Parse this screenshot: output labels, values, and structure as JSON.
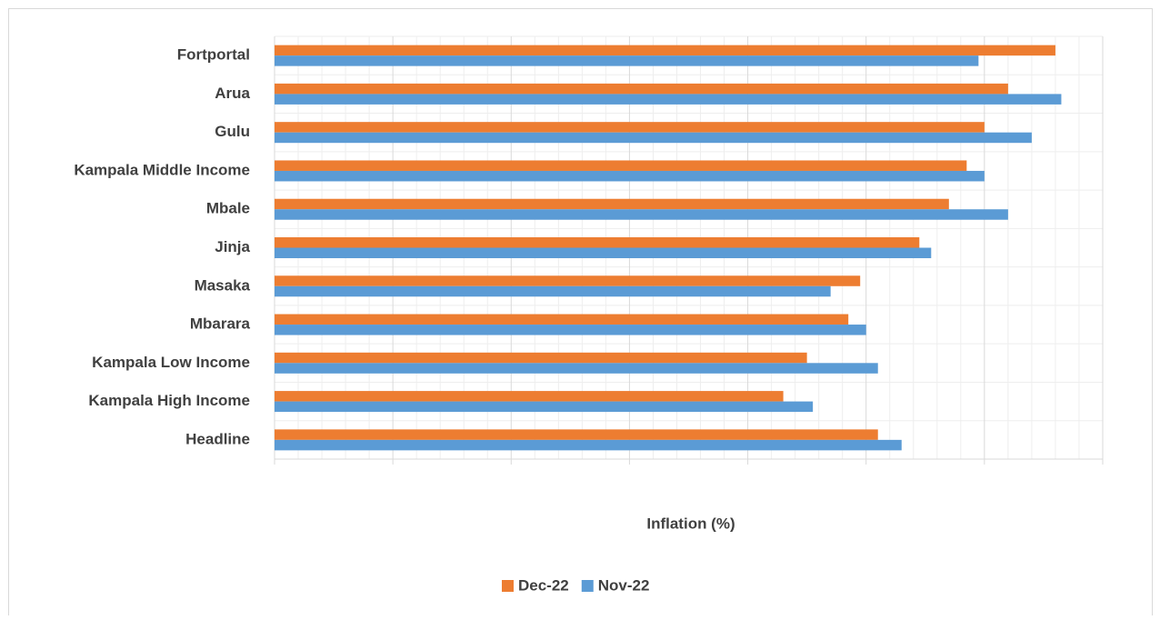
{
  "chart_data": {
    "type": "hbar",
    "categories": [
      "Fortportal",
      "Arua",
      "Gulu",
      "Kampala Middle Income",
      "Mbale",
      "Jinja",
      "Masaka",
      "Mbarara",
      "Kampala Low Income",
      "Kampala High Income",
      "Headline"
    ],
    "series": [
      {
        "name": "Dec-22",
        "color": "#ed7d31",
        "values": [
          13.2,
          12.4,
          12.0,
          11.7,
          11.4,
          10.9,
          9.9,
          9.7,
          9.0,
          8.6,
          10.2
        ]
      },
      {
        "name": "Nov-22",
        "color": "#5b9bd5",
        "values": [
          11.9,
          13.3,
          12.8,
          12.0,
          12.4,
          11.1,
          9.4,
          10.0,
          10.2,
          9.1,
          10.6
        ]
      }
    ],
    "xlabel": "Inflation (%)",
    "xlim": [
      0,
      14
    ],
    "xticks": [
      0,
      2,
      4,
      6,
      8,
      10,
      12,
      14
    ],
    "grid": true,
    "minor_grid": true,
    "legend": "bottom"
  }
}
